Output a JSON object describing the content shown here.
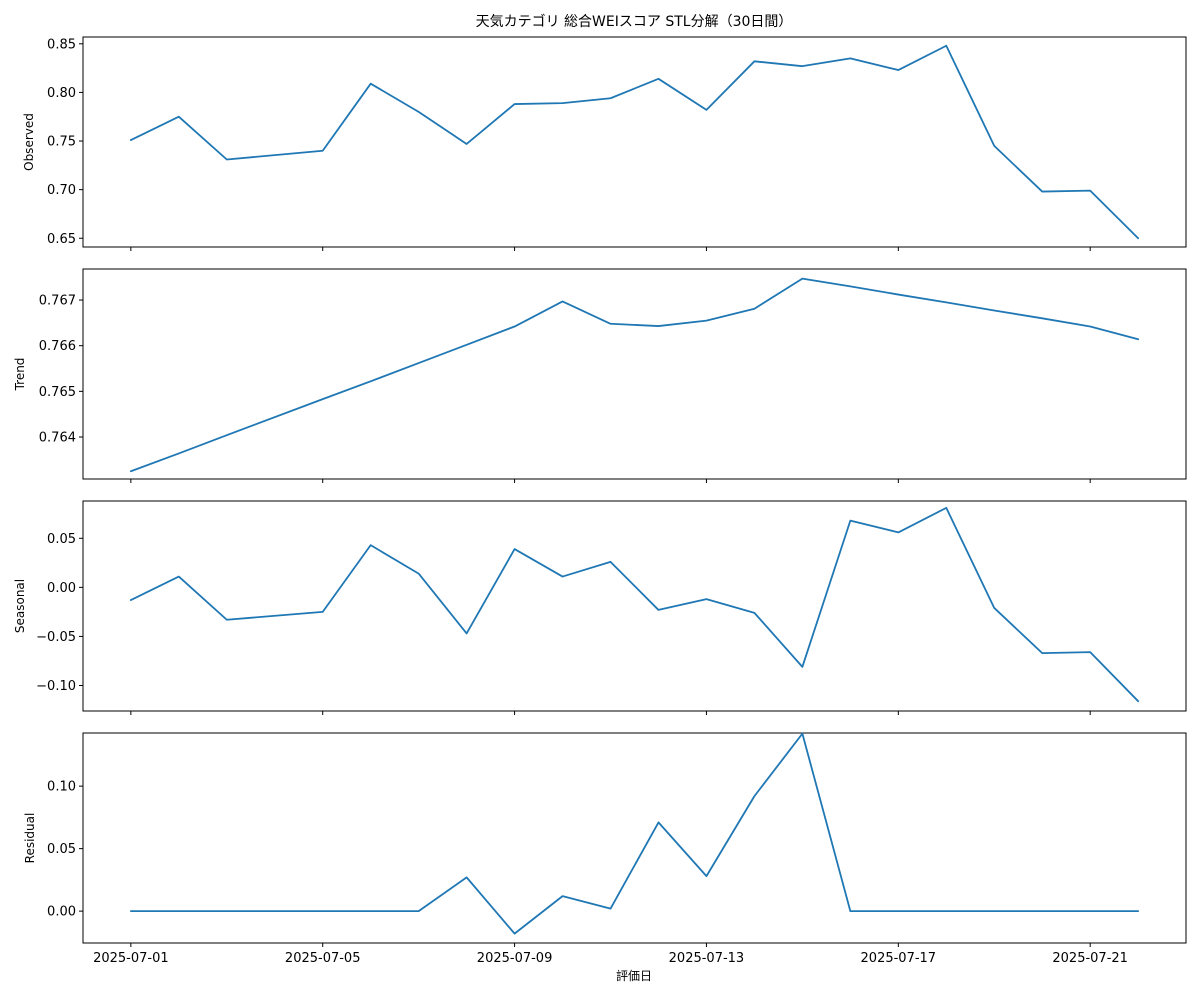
{
  "chart_data": {
    "type": "line",
    "title": "天気カテゴリ 総合WEIスコア STL分解（30日間）",
    "xlabel": "評価日",
    "x": [
      "2025-07-01",
      "2025-07-02",
      "2025-07-03",
      "2025-07-05",
      "2025-07-06",
      "2025-07-07",
      "2025-07-08",
      "2025-07-09",
      "2025-07-10",
      "2025-07-11",
      "2025-07-12",
      "2025-07-13",
      "2025-07-14",
      "2025-07-15",
      "2025-07-16",
      "2025-07-17",
      "2025-07-18",
      "2025-07-19",
      "2025-07-20",
      "2025-07-21",
      "2025-07-22"
    ],
    "x_tick_labels": [
      "2025-07-01",
      "2025-07-05",
      "2025-07-09",
      "2025-07-13",
      "2025-07-17",
      "2025-07-21"
    ],
    "color": "#1f77b4",
    "panels": [
      {
        "ylabel": "Observed",
        "ylim": [
          0.641,
          0.857
        ],
        "yticks": [
          "0.65",
          "0.70",
          "0.75",
          "0.80",
          "0.85"
        ],
        "values": [
          0.751,
          0.775,
          0.731,
          0.74,
          0.809,
          0.78,
          0.747,
          0.788,
          0.789,
          0.794,
          0.814,
          0.782,
          0.832,
          0.827,
          0.835,
          0.823,
          0.848,
          0.745,
          0.698,
          0.699,
          0.65
        ]
      },
      {
        "ylabel": "Trend",
        "ylim": [
          0.76308,
          0.76768
        ],
        "yticks": [
          "0.764",
          "0.765",
          "0.766",
          "0.767"
        ],
        "values": [
          0.76325,
          0.76364,
          0.76404,
          0.76483,
          0.76522,
          0.76562,
          0.76602,
          0.76642,
          0.76697,
          0.76648,
          0.76643,
          0.76655,
          0.76681,
          0.76747,
          0.7673,
          0.76712,
          0.76695,
          0.76677,
          0.7666,
          0.76642,
          0.76614
        ]
      },
      {
        "ylabel": "Seasonal",
        "ylim": [
          -0.126,
          0.088
        ],
        "yticks": [
          "−0.10",
          "−0.05",
          "0.00",
          "0.05"
        ],
        "values": [
          -0.013,
          0.011,
          -0.033,
          -0.025,
          0.043,
          0.014,
          -0.047,
          0.039,
          0.011,
          0.026,
          -0.023,
          -0.012,
          -0.026,
          -0.081,
          0.068,
          0.056,
          0.081,
          -0.021,
          -0.067,
          -0.066,
          -0.116
        ]
      },
      {
        "ylabel": "Residual",
        "ylim": [
          -0.0255,
          0.1425
        ],
        "yticks": [
          "0.00",
          "0.05",
          "0.10"
        ],
        "values": [
          0,
          0,
          0,
          0,
          0,
          0,
          0.027,
          -0.018,
          0.012,
          0.002,
          0.071,
          0.028,
          0.092,
          0.142,
          0,
          0,
          0,
          0,
          0,
          0,
          0
        ]
      }
    ],
    "grid": false,
    "legend": "none"
  }
}
